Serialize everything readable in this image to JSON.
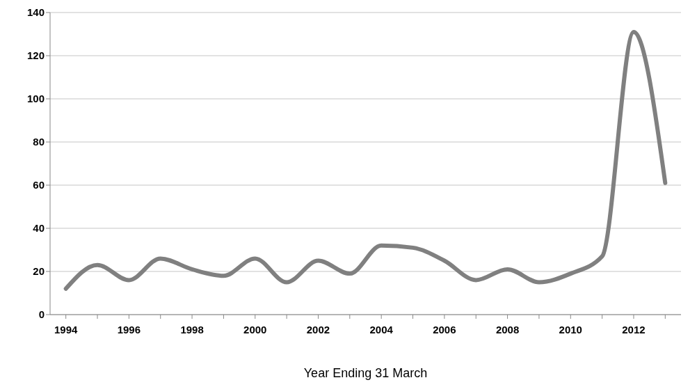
{
  "chart_data": {
    "type": "line",
    "xlabel": "Year Ending 31 March",
    "categories": [
      "1994",
      null,
      "1996",
      null,
      "1998",
      null,
      "2000",
      null,
      "2002",
      null,
      "2004",
      null,
      "2006",
      null,
      "2008",
      null,
      "2010",
      null,
      "2012",
      null
    ],
    "series": [
      {
        "color": "#808080",
        "values": [
          12,
          23,
          16,
          26,
          21,
          18,
          26,
          15,
          25,
          19,
          32,
          31,
          25,
          16,
          21,
          15,
          19,
          27,
          131,
          61
        ]
      }
    ],
    "ylim": [
      0,
      140
    ],
    "yticks": [
      0,
      20,
      40,
      60,
      80,
      100,
      120,
      140
    ],
    "grid": "y",
    "legend": false,
    "marker": "none",
    "line_style": "solid"
  }
}
